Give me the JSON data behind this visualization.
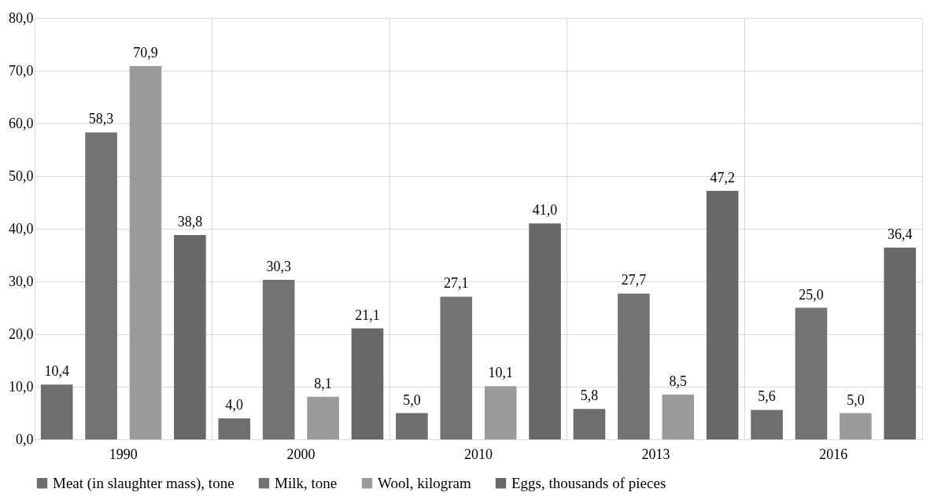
{
  "chart_data": {
    "type": "bar",
    "categories": [
      "1990",
      "2000",
      "2010",
      "2013",
      "2016"
    ],
    "series": [
      {
        "name": "Meat (in slaughter mass), tone",
        "color": "#6e6e6e",
        "values": [
          10.4,
          4.0,
          5.0,
          5.8,
          5.6
        ],
        "value_labels": [
          "10,4",
          "4,0",
          "5,0",
          "5,8",
          "5,6"
        ]
      },
      {
        "name": "Milk, tone",
        "color": "#737373",
        "values": [
          58.3,
          30.3,
          27.1,
          27.7,
          25.0
        ],
        "value_labels": [
          "58,3",
          "30,3",
          "27,1",
          "27,7",
          "25,0"
        ]
      },
      {
        "name": "Wool, kilogram",
        "color": "#9b9b9b",
        "values": [
          70.9,
          8.1,
          10.1,
          8.5,
          5.0
        ],
        "value_labels": [
          "70,9",
          "8,1",
          "10,1",
          "8,5",
          "5,0"
        ]
      },
      {
        "name": "Eggs, thousands of pieces",
        "color": "#686868",
        "values": [
          38.8,
          21.1,
          41.0,
          47.2,
          36.4
        ],
        "value_labels": [
          "38,8",
          "21,1",
          "41,0",
          "47,2",
          "36,4"
        ]
      }
    ],
    "ylim": [
      0,
      80
    ],
    "yticks": [
      {
        "value": 0,
        "label": "0,0"
      },
      {
        "value": 10,
        "label": "10,0"
      },
      {
        "value": 20,
        "label": "20,0"
      },
      {
        "value": 30,
        "label": "30,0"
      },
      {
        "value": 40,
        "label": "40,0"
      },
      {
        "value": 50,
        "label": "50,0"
      },
      {
        "value": 60,
        "label": "60,0"
      },
      {
        "value": 70,
        "label": "70,0"
      },
      {
        "value": 80,
        "label": "80,0"
      }
    ],
    "grid": true,
    "legend": "bottom"
  }
}
